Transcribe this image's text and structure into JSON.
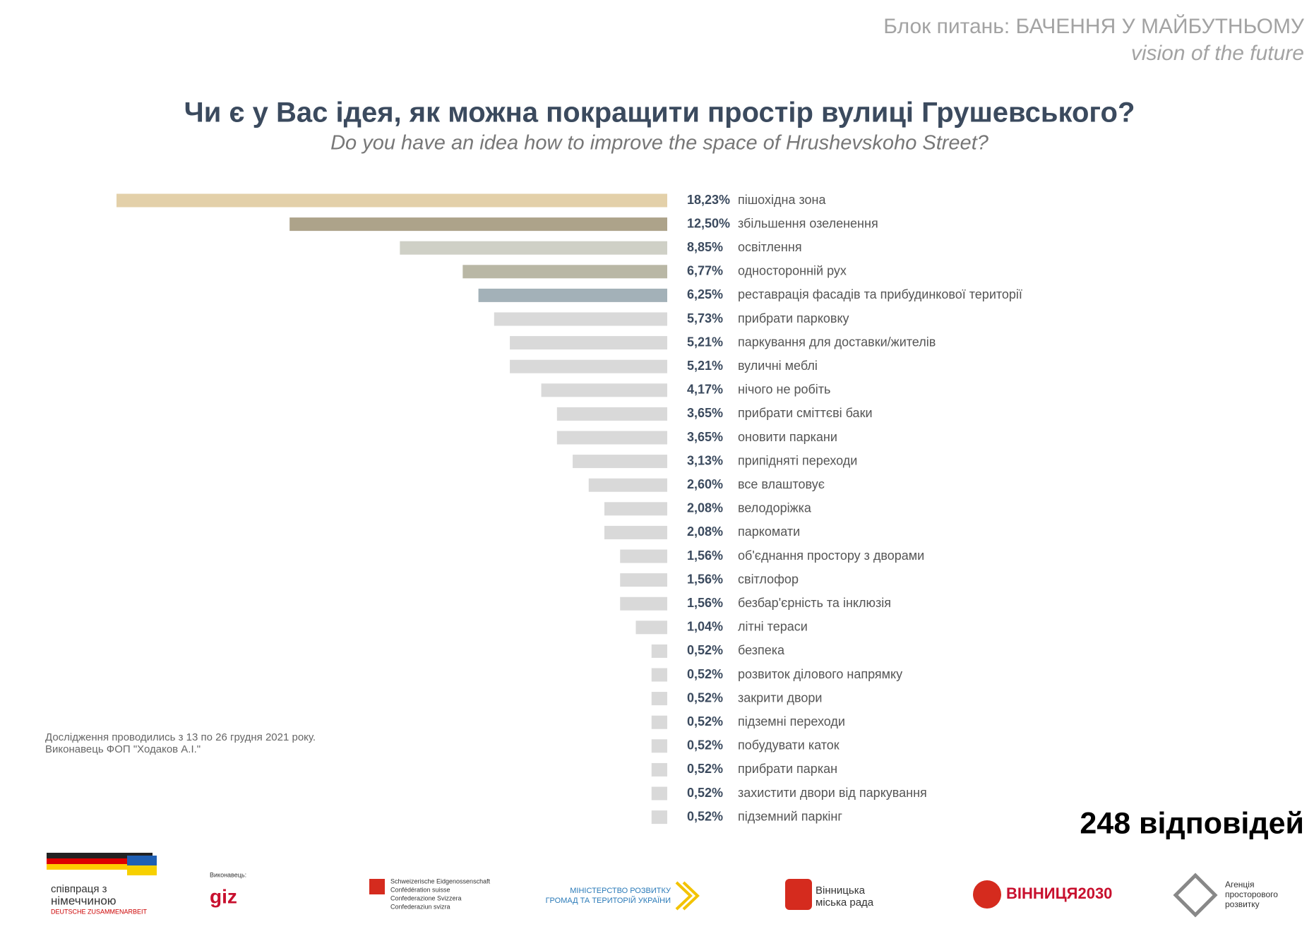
{
  "header": {
    "section": "Блок питань: БАЧЕННЯ У МАЙБУТНЬОМУ",
    "section_en": "vision of the future"
  },
  "chart_data": {
    "type": "bar",
    "orientation": "horizontal-left",
    "title": "Чи є у Вас ідея, як можна покращити простір вулиці Грушевського?",
    "subtitle": "Do you have an idea how to improve the space of Hrushevskoho Street?",
    "categories": [
      "пішохідна зона",
      "збільшення озеленення",
      "освітлення",
      "односторонній рух",
      "реставрація фасадів та прибудинкової території",
      "прибрати парковку",
      "паркування для доставки/жителів",
      "вуличні меблі",
      "нічого не робіть",
      "прибрати сміттєві баки",
      "оновити паркани",
      "припідняті переходи",
      "все влаштовує",
      "велодоріжка",
      "паркомати",
      "об'єднання простору з дворами",
      "світлофор",
      "безбар'єрність та інклюзія",
      "літні тераси",
      "безпека",
      "розвиток ділового напрямку",
      "закрити двори",
      "підземні переходи",
      "побудувати каток",
      "прибрати паркан",
      "захистити двори від паркування",
      "підземний паркінг"
    ],
    "values": [
      18.23,
      12.5,
      8.85,
      6.77,
      6.25,
      5.73,
      5.21,
      5.21,
      4.17,
      3.65,
      3.65,
      3.13,
      2.6,
      2.08,
      2.08,
      1.56,
      1.56,
      1.56,
      1.04,
      0.52,
      0.52,
      0.52,
      0.52,
      0.52,
      0.52,
      0.52,
      0.52
    ],
    "value_labels": [
      "18,23%",
      "12,50%",
      "8,85%",
      "6,77%",
      "6,25%",
      "5,73%",
      "5,21%",
      "5,21%",
      "4,17%",
      "3,65%",
      "3,65%",
      "3,13%",
      "2,60%",
      "2,08%",
      "2,08%",
      "1,56%",
      "1,56%",
      "1,56%",
      "1,04%",
      "0,52%",
      "0,52%",
      "0,52%",
      "0,52%",
      "0,52%",
      "0,52%",
      "0,52%",
      "0,52%"
    ],
    "colors": [
      "#e3d0a9",
      "#ada38a",
      "#cfd0c6",
      "#b9b7a5",
      "#a3b1b8",
      "#d9d9d9",
      "#d9d9d9",
      "#d9d9d9",
      "#d9d9d9",
      "#d9d9d9",
      "#d9d9d9",
      "#d9d9d9",
      "#d9d9d9",
      "#d9d9d9",
      "#d9d9d9",
      "#d9d9d9",
      "#d9d9d9",
      "#d9d9d9",
      "#d9d9d9",
      "#d9d9d9",
      "#d9d9d9",
      "#d9d9d9",
      "#d9d9d9",
      "#d9d9d9",
      "#d9d9d9",
      "#d9d9d9",
      "#d9d9d9"
    ]
  },
  "footnote": [
    "Дослідження проводились з 13 по 26 грудня 2021 року.",
    "Виконавець ФОП \"Ходаков А.І.\""
  ],
  "responses": "248 відповідей",
  "logos": [
    "співпраця з",
    "німеччиною",
    "DEUTSCHE ZUSAMMENARBEIT",
    "Виконавець:",
    "giz",
    "Schweizerische Eidgenossenschaft",
    "Confédération suisse",
    "Confederazione Svizzera",
    "Confederaziun svizra",
    "МІНІСТЕРСТВО РОЗВИТКУ",
    "ГРОМАД ТА ТЕРИТОРІЙ УКРАЇНИ",
    "Вінницька",
    "міська рада",
    "ВІННИЦЯ2030",
    "Агенція",
    "просторового",
    "розвитку"
  ]
}
